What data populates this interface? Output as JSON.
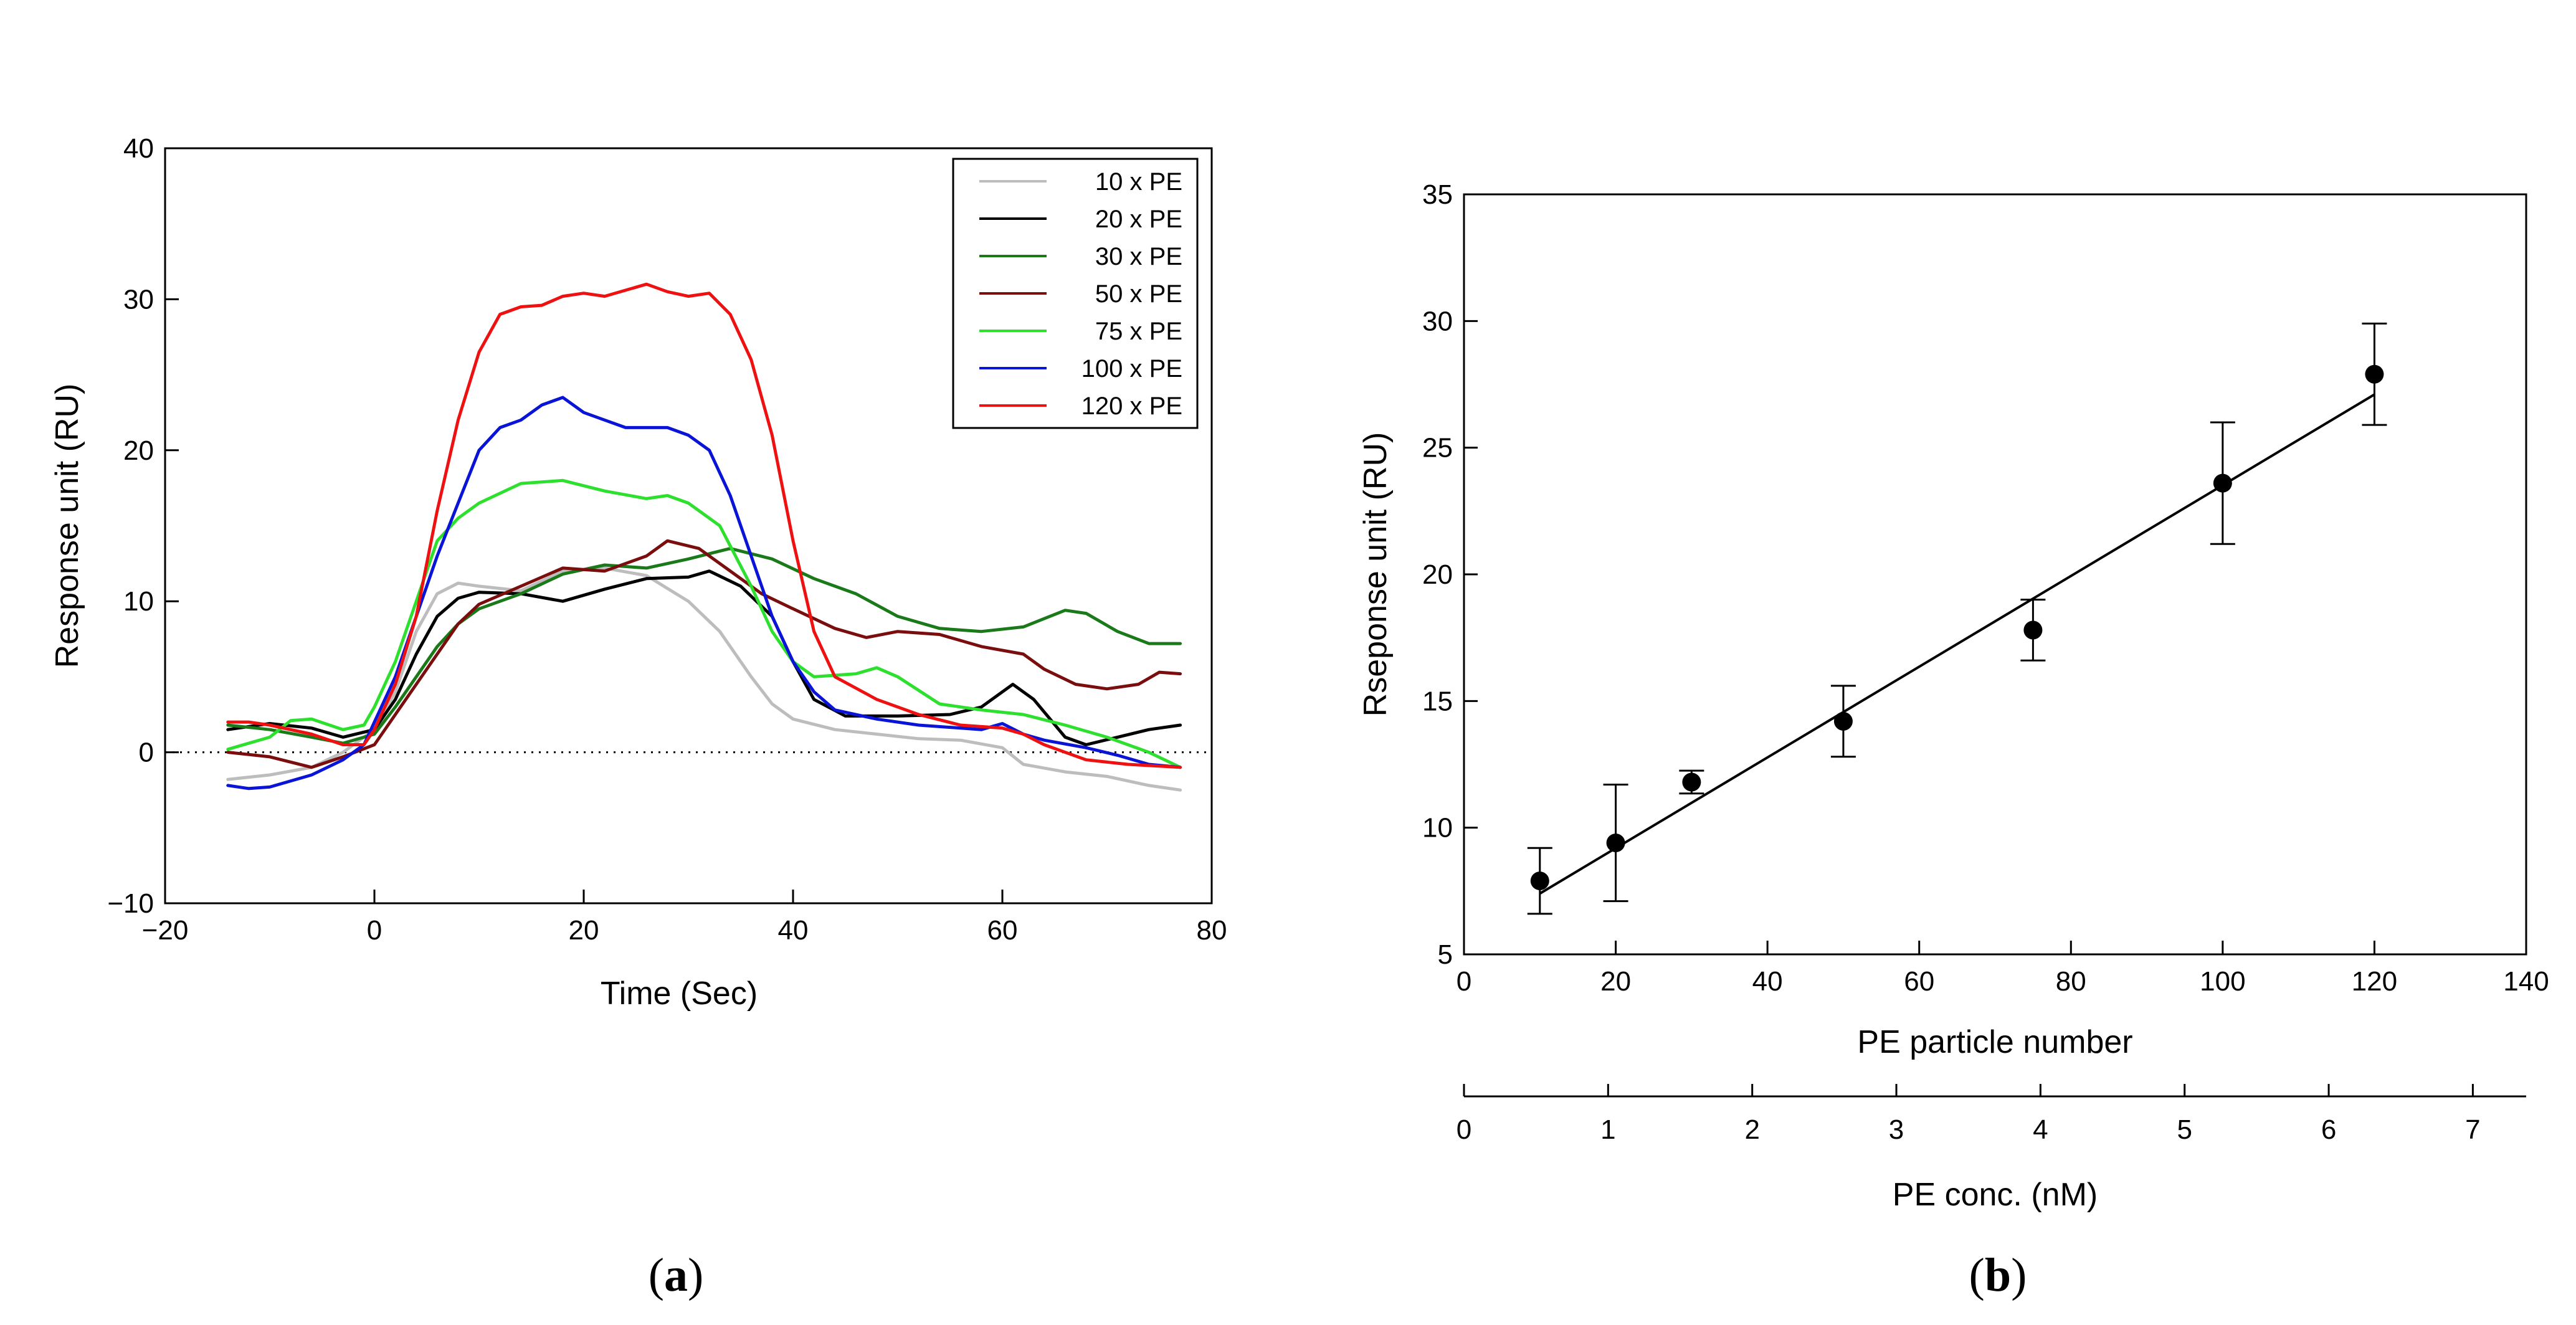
{
  "panels": [
    {
      "label": "a"
    },
    {
      "label": "b"
    }
  ],
  "chart_data": [
    {
      "type": "line",
      "panel": "a",
      "xlabel": "Time (Sec)",
      "ylabel": "Response unit (RU)",
      "xlim": [
        -20,
        80
      ],
      "ylim": [
        -10,
        40
      ],
      "xticks": [
        -20,
        0,
        20,
        40,
        60,
        80
      ],
      "xtick_labels": [
        "−20",
        "0",
        "20",
        "40",
        "60",
        "80"
      ],
      "yticks": [
        -10,
        0,
        10,
        20,
        30,
        40
      ],
      "ytick_labels": [
        "−10",
        "0",
        "10",
        "20",
        "30",
        "40"
      ],
      "baseline": 0,
      "legend_position": "top-right",
      "series": [
        {
          "name": "10 x PE",
          "color": "#bdbdbd",
          "points": [
            [
              -14,
              -1.8
            ],
            [
              -10,
              -1.5
            ],
            [
              -6,
              -1
            ],
            [
              -3,
              0
            ],
            [
              0,
              1.5
            ],
            [
              2,
              4
            ],
            [
              4,
              8
            ],
            [
              6,
              10.5
            ],
            [
              8,
              11.2
            ],
            [
              10,
              11
            ],
            [
              14,
              10.7
            ],
            [
              18,
              12
            ],
            [
              22,
              12.2
            ],
            [
              26,
              11.7
            ],
            [
              30,
              10
            ],
            [
              33,
              8
            ],
            [
              36,
              5
            ],
            [
              38,
              3.2
            ],
            [
              40,
              2.2
            ],
            [
              44,
              1.5
            ],
            [
              48,
              1.2
            ],
            [
              52,
              0.9
            ],
            [
              56,
              0.8
            ],
            [
              60,
              0.3
            ],
            [
              62,
              -0.8
            ],
            [
              66,
              -1.3
            ],
            [
              70,
              -1.6
            ],
            [
              74,
              -2.2
            ],
            [
              77,
              -2.5
            ]
          ]
        },
        {
          "name": "20 x PE",
          "color": "#000000",
          "points": [
            [
              -14,
              1.5
            ],
            [
              -10,
              1.9
            ],
            [
              -6,
              1.6
            ],
            [
              -3,
              1
            ],
            [
              0,
              1.5
            ],
            [
              2,
              3.5
            ],
            [
              4,
              6.5
            ],
            [
              6,
              9
            ],
            [
              8,
              10.2
            ],
            [
              10,
              10.6
            ],
            [
              14,
              10.5
            ],
            [
              18,
              10
            ],
            [
              22,
              10.8
            ],
            [
              26,
              11.5
            ],
            [
              30,
              11.6
            ],
            [
              32,
              12
            ],
            [
              35,
              11
            ],
            [
              38,
              9
            ],
            [
              40,
              6
            ],
            [
              42,
              3.5
            ],
            [
              45,
              2.4
            ],
            [
              50,
              2.4
            ],
            [
              55,
              2.5
            ],
            [
              58,
              3
            ],
            [
              61,
              4.5
            ],
            [
              63,
              3.5
            ],
            [
              66,
              1
            ],
            [
              68,
              0.5
            ],
            [
              71,
              1
            ],
            [
              74,
              1.5
            ],
            [
              77,
              1.8
            ]
          ]
        },
        {
          "name": "30 x PE",
          "color": "#1a7a1a",
          "points": [
            [
              -14,
              1.8
            ],
            [
              -10,
              1.5
            ],
            [
              -6,
              1
            ],
            [
              -3,
              0.6
            ],
            [
              0,
              1.2
            ],
            [
              2,
              3
            ],
            [
              4,
              5
            ],
            [
              6,
              7
            ],
            [
              8,
              8.5
            ],
            [
              10,
              9.5
            ],
            [
              14,
              10.5
            ],
            [
              18,
              11.8
            ],
            [
              22,
              12.4
            ],
            [
              26,
              12.2
            ],
            [
              30,
              12.8
            ],
            [
              34,
              13.5
            ],
            [
              38,
              12.8
            ],
            [
              42,
              11.5
            ],
            [
              46,
              10.5
            ],
            [
              50,
              9
            ],
            [
              54,
              8.2
            ],
            [
              58,
              8
            ],
            [
              62,
              8.3
            ],
            [
              66,
              9.4
            ],
            [
              68,
              9.2
            ],
            [
              71,
              8
            ],
            [
              74,
              7.2
            ],
            [
              77,
              7.2
            ]
          ]
        },
        {
          "name": "50 x PE",
          "color": "#7a0e0e",
          "points": [
            [
              -14,
              0
            ],
            [
              -10,
              -0.3
            ],
            [
              -6,
              -1
            ],
            [
              -3,
              -0.3
            ],
            [
              0,
              0.5
            ],
            [
              2,
              2.5
            ],
            [
              4,
              4.5
            ],
            [
              6,
              6.5
            ],
            [
              8,
              8.5
            ],
            [
              10,
              9.8
            ],
            [
              14,
              11
            ],
            [
              18,
              12.2
            ],
            [
              22,
              12
            ],
            [
              26,
              13
            ],
            [
              28,
              14
            ],
            [
              31,
              13.5
            ],
            [
              34,
              12
            ],
            [
              37,
              10.5
            ],
            [
              40,
              9.5
            ],
            [
              44,
              8.2
            ],
            [
              47,
              7.6
            ],
            [
              50,
              8
            ],
            [
              54,
              7.8
            ],
            [
              58,
              7
            ],
            [
              62,
              6.5
            ],
            [
              64,
              5.5
            ],
            [
              67,
              4.5
            ],
            [
              70,
              4.2
            ],
            [
              73,
              4.5
            ],
            [
              75,
              5.3
            ],
            [
              77,
              5.2
            ]
          ]
        },
        {
          "name": "75 x PE",
          "color": "#2ee02e",
          "points": [
            [
              -14,
              0.2
            ],
            [
              -10,
              1
            ],
            [
              -8,
              2.1
            ],
            [
              -6,
              2.2
            ],
            [
              -3,
              1.5
            ],
            [
              -1,
              1.8
            ],
            [
              0,
              3
            ],
            [
              2,
              6
            ],
            [
              4,
              10
            ],
            [
              6,
              14
            ],
            [
              8,
              15.5
            ],
            [
              10,
              16.5
            ],
            [
              14,
              17.8
            ],
            [
              18,
              18
            ],
            [
              22,
              17.3
            ],
            [
              26,
              16.8
            ],
            [
              28,
              17
            ],
            [
              30,
              16.5
            ],
            [
              33,
              15
            ],
            [
              36,
              11
            ],
            [
              38,
              8
            ],
            [
              40,
              6
            ],
            [
              42,
              5
            ],
            [
              46,
              5.2
            ],
            [
              48,
              5.6
            ],
            [
              50,
              5
            ],
            [
              54,
              3.2
            ],
            [
              58,
              2.8
            ],
            [
              62,
              2.5
            ],
            [
              66,
              1.8
            ],
            [
              70,
              1
            ],
            [
              74,
              0
            ],
            [
              77,
              -1
            ]
          ]
        },
        {
          "name": "100 x PE",
          "color": "#0a14d6",
          "points": [
            [
              -14,
              -2.2
            ],
            [
              -12,
              -2.4
            ],
            [
              -10,
              -2.3
            ],
            [
              -6,
              -1.5
            ],
            [
              -3,
              -0.5
            ],
            [
              -1,
              0.5
            ],
            [
              0,
              2
            ],
            [
              2,
              5
            ],
            [
              4,
              9
            ],
            [
              6,
              13
            ],
            [
              8,
              16.5
            ],
            [
              10,
              20
            ],
            [
              12,
              21.5
            ],
            [
              14,
              22
            ],
            [
              16,
              23
            ],
            [
              18,
              23.5
            ],
            [
              20,
              22.5
            ],
            [
              22,
              22
            ],
            [
              24,
              21.5
            ],
            [
              28,
              21.5
            ],
            [
              30,
              21
            ],
            [
              32,
              20
            ],
            [
              34,
              17
            ],
            [
              36,
              13
            ],
            [
              38,
              9
            ],
            [
              40,
              6
            ],
            [
              42,
              4
            ],
            [
              44,
              2.8
            ],
            [
              48,
              2.2
            ],
            [
              52,
              1.8
            ],
            [
              56,
              1.6
            ],
            [
              58,
              1.5
            ],
            [
              60,
              1.9
            ],
            [
              62,
              1.2
            ],
            [
              64,
              0.8
            ],
            [
              68,
              0.3
            ],
            [
              71,
              -0.2
            ],
            [
              74,
              -0.8
            ],
            [
              77,
              -1
            ]
          ]
        },
        {
          "name": "120 x PE",
          "color": "#ee1111",
          "points": [
            [
              -14,
              2
            ],
            [
              -12,
              2
            ],
            [
              -10,
              1.8
            ],
            [
              -6,
              1.2
            ],
            [
              -3,
              0.5
            ],
            [
              -1,
              0.5
            ],
            [
              0,
              1.5
            ],
            [
              2,
              4.5
            ],
            [
              4,
              9
            ],
            [
              6,
              16
            ],
            [
              8,
              22
            ],
            [
              10,
              26.5
            ],
            [
              12,
              29
            ],
            [
              14,
              29.5
            ],
            [
              16,
              29.6
            ],
            [
              18,
              30.2
            ],
            [
              20,
              30.4
            ],
            [
              22,
              30.2
            ],
            [
              24,
              30.6
            ],
            [
              26,
              31
            ],
            [
              28,
              30.5
            ],
            [
              30,
              30.2
            ],
            [
              32,
              30.4
            ],
            [
              34,
              29
            ],
            [
              36,
              26
            ],
            [
              38,
              21
            ],
            [
              40,
              14
            ],
            [
              42,
              8
            ],
            [
              44,
              5
            ],
            [
              48,
              3.5
            ],
            [
              52,
              2.5
            ],
            [
              56,
              1.8
            ],
            [
              60,
              1.6
            ],
            [
              62,
              1.2
            ],
            [
              64,
              0.5
            ],
            [
              68,
              -0.5
            ],
            [
              72,
              -0.8
            ],
            [
              77,
              -1
            ]
          ]
        }
      ]
    },
    {
      "type": "scatter",
      "panel": "b",
      "xlabel": "PE particle number",
      "ylabel": "Rseponse unit (RU)",
      "xlim": [
        0,
        140
      ],
      "ylim": [
        5,
        35
      ],
      "xticks": [
        0,
        20,
        40,
        60,
        80,
        100,
        120,
        140
      ],
      "yticks": [
        5,
        10,
        15,
        20,
        25,
        30,
        35
      ],
      "points": [
        {
          "x": 10,
          "y": 7.9,
          "err": 1.3
        },
        {
          "x": 20,
          "y": 9.4,
          "err": 2.3
        },
        {
          "x": 30,
          "y": 11.8,
          "err": 0.45
        },
        {
          "x": 50,
          "y": 14.2,
          "err": 1.4
        },
        {
          "x": 75,
          "y": 17.8,
          "err": 1.2
        },
        {
          "x": 100,
          "y": 23.6,
          "err": 2.4
        },
        {
          "x": 120,
          "y": 27.9,
          "err": 2.0
        }
      ],
      "fit_line": {
        "x": [
          10,
          120
        ],
        "y": [
          7.4,
          27.1
        ]
      },
      "secondary_xaxis": {
        "label": "PE conc. (nM)",
        "ticks": [
          0,
          1,
          2,
          3,
          4,
          5,
          6,
          7
        ],
        "xlim": [
          0,
          7.37
        ]
      }
    }
  ]
}
